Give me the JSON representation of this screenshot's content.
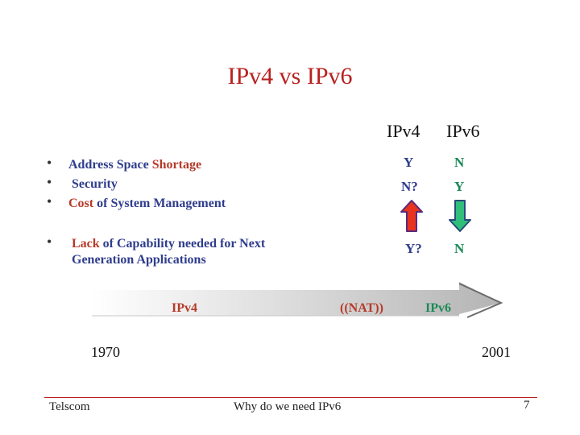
{
  "title": "IPv4 vs IPv6",
  "columns": {
    "ipv4": "IPv4",
    "ipv6": "IPv6"
  },
  "bullets": [
    {
      "segments": [
        {
          "text": "Address Space ",
          "color": "blue"
        },
        {
          "text": "Shortage",
          "color": "red"
        }
      ],
      "ipv4": "Y",
      "ipv6": "N"
    },
    {
      "segments": [
        {
          "text": "Security",
          "color": "blue"
        }
      ],
      "ipv4": "N?",
      "ipv6": "Y"
    },
    {
      "segments": [
        {
          "text": "Cost ",
          "color": "red"
        },
        {
          "text": "of System Management",
          "color": "blue"
        }
      ],
      "ipv4": "",
      "ipv6": ""
    },
    {
      "segments": [
        {
          "text": "Lack ",
          "color": "red"
        },
        {
          "text": "of Capability needed for Next",
          "color": "blue"
        }
      ],
      "continuation": "Generation Applications",
      "ipv4": "Y?",
      "ipv6": "N"
    }
  ],
  "indicators": {
    "up": "up-arrow",
    "down": "down-arrow",
    "up_color": "#e8331f",
    "down_color": "#2fbf7a"
  },
  "timeline": {
    "ipv4": "IPv4",
    "nat": "((NAT))",
    "ipv6": "IPv6",
    "start_year": "1970",
    "end_year": "2001"
  },
  "footer": {
    "left": "Telscom",
    "center": "Why do we need IPv6",
    "page": "7"
  },
  "colors": {
    "title": "#b8211f",
    "blue": "#2f3d8c",
    "red": "#b63a2a",
    "green": "#1c8a58"
  }
}
